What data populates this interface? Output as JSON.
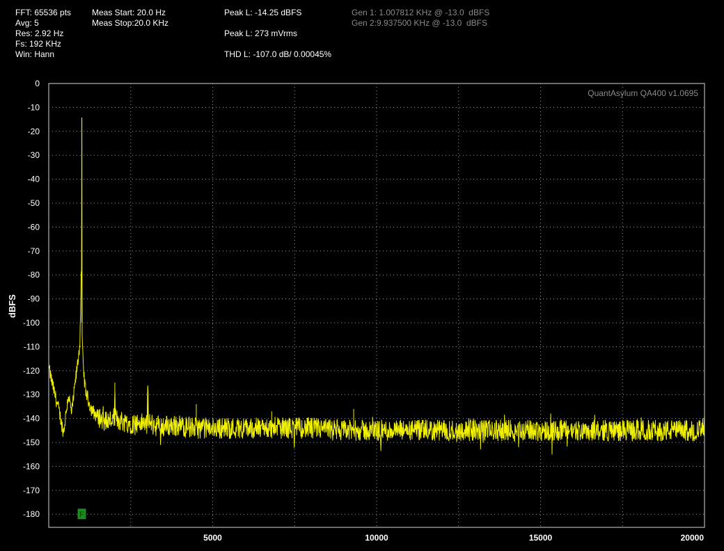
{
  "info": {
    "fft": "FFT: 65536 pts",
    "avg": "Avg: 5",
    "res": "Res: 2.92 Hz",
    "fs": "Fs: 192 KHz",
    "win": "Win: Hann",
    "meas_start": "Meas Start: 20.0 Hz",
    "meas_stop": "Meas Stop:20.0 KHz",
    "peak_dbfs": "Peak L: -14.25 dBFS",
    "peak_mv": "Peak L: 273 mVrms",
    "thd": "THD L: -107.0 dB/ 0.00045%",
    "gen1": "Gen 1: 1.007812 KHz @ -13.0  dBFS",
    "gen2": "Gen 2:9.937500 KHz @ -13.0  dBFS"
  },
  "chart_data": {
    "type": "line",
    "watermark": "QuantAsylum QA400 v1.0695",
    "xlabel": "",
    "ylabel": "dBFS",
    "xlim": [
      0,
      20000
    ],
    "ylim": [
      -185,
      0
    ],
    "x_ticks": [
      "5000",
      "10000",
      "15000",
      "20000"
    ],
    "y_ticks": [
      "0",
      "-10",
      "-20",
      "-30",
      "-40",
      "-50",
      "-60",
      "-70",
      "-80",
      "-90",
      "-100",
      "-110",
      "-120",
      "-130",
      "-140",
      "-150",
      "-160",
      "-170",
      "-180"
    ],
    "grid": true,
    "line_color": "#f0f000",
    "marker_label": "F",
    "marker_x": 1008,
    "marker_y": -180,
    "series": [
      {
        "x": [
          20,
          150,
          300,
          450,
          600,
          700,
          800,
          900,
          950,
          990,
          1000,
          1008,
          1016,
          1030,
          1060,
          1120,
          1200,
          1300,
          1400,
          1500,
          1600,
          1800,
          2000,
          2015,
          2030,
          2200,
          2500,
          2800,
          3000,
          3024,
          3050,
          3300,
          3600,
          4000,
          4500,
          5000,
          5500,
          6000,
          7000,
          8000,
          9000,
          10000,
          11000,
          12000,
          13000,
          14000,
          15000,
          16000,
          17000,
          18000,
          19000,
          20000
        ],
        "values": [
          -120,
          -128,
          -136,
          -146,
          -130,
          -138,
          -126,
          -115,
          -108,
          -82,
          -78,
          -14.25,
          -100,
          -112,
          -120,
          -128,
          -132,
          -136,
          -138,
          -139,
          -140,
          -141,
          -140,
          -125,
          -140,
          -141,
          -142,
          -142,
          -142,
          -128,
          -142,
          -143,
          -143,
          -143,
          -144,
          -144,
          -144,
          -144,
          -144,
          -144,
          -145,
          -145,
          -145,
          -145,
          -145,
          -145,
          -145,
          -145,
          -145,
          -145,
          -145,
          -145
        ]
      }
    ],
    "harmonics": [
      {
        "x": 2016,
        "y": -125
      },
      {
        "x": 3024,
        "y": -128
      },
      {
        "x": 4500,
        "y": -134
      },
      {
        "x": 6800,
        "y": -137
      },
      {
        "x": 9300,
        "y": -136
      }
    ]
  }
}
